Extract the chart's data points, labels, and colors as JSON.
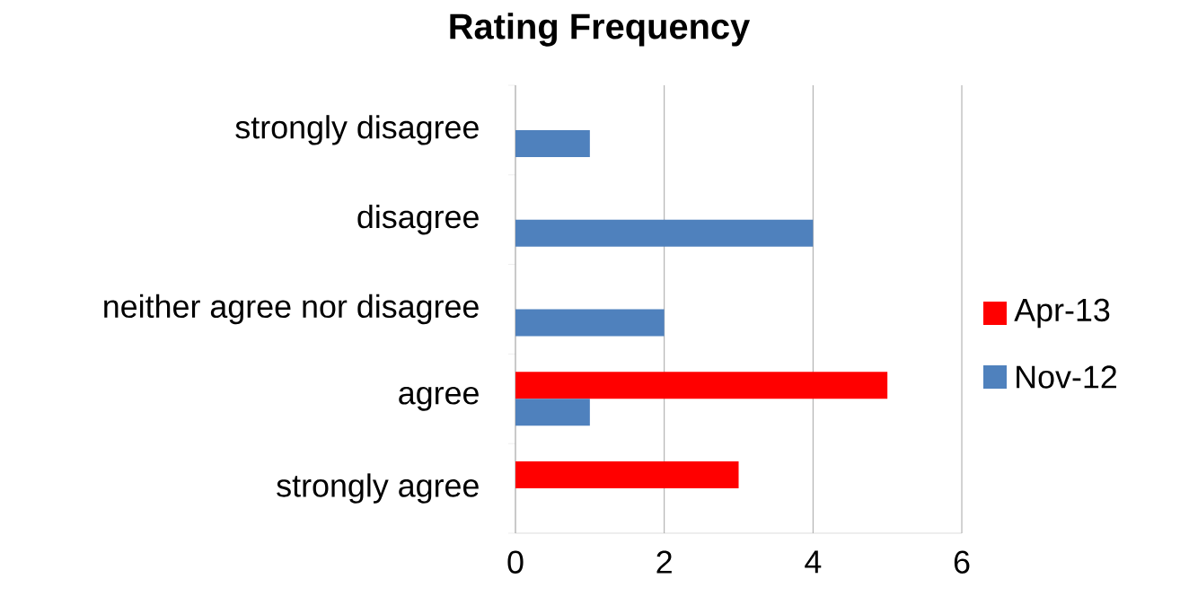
{
  "chart_data": {
    "type": "bar",
    "orientation": "horizontal",
    "title": "Rating Frequency",
    "categories": [
      "strongly disagree",
      "disagree",
      "neither agree nor disagree",
      "agree",
      "strongly agree"
    ],
    "series": [
      {
        "name": "Apr-13",
        "color": "#ff0000",
        "values": [
          0,
          0,
          0,
          5,
          3
        ]
      },
      {
        "name": "Nov-12",
        "color": "#4f81bd",
        "values": [
          1,
          4,
          2,
          1,
          0
        ]
      }
    ],
    "xlim": [
      0,
      6
    ],
    "xticks": [
      0,
      2,
      4,
      6
    ],
    "grid": "x",
    "legend": "right"
  }
}
